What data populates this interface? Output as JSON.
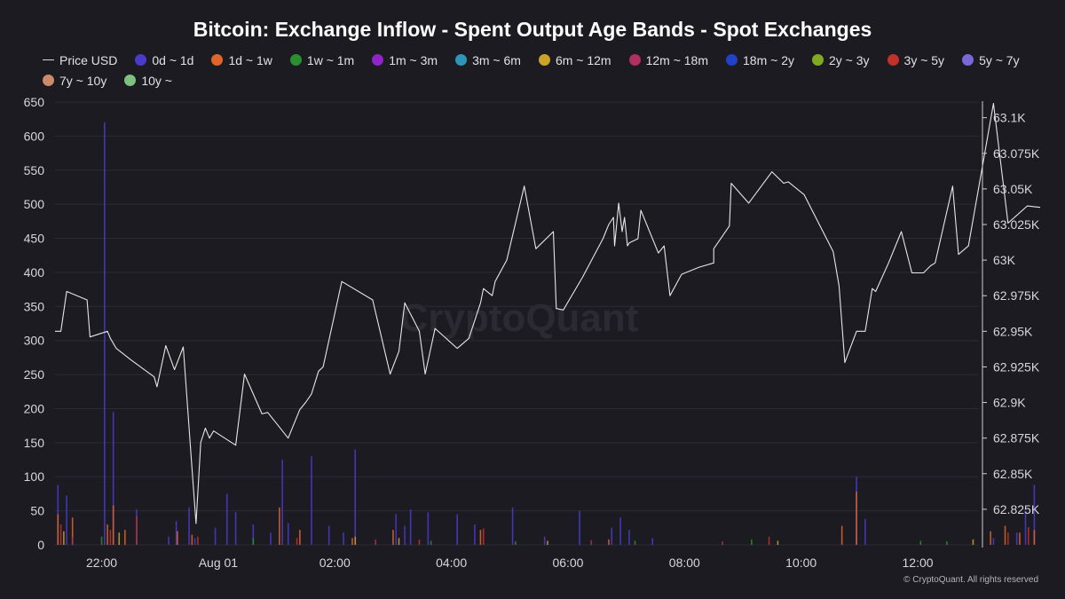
{
  "chart_data": {
    "type": "line",
    "title": "Bitcoin: Exchange Inflow - Spent Output Age Bands - Spot Exchanges",
    "watermark": "CryptoQuant",
    "copyright": "© CryptoQuant. All rights reserved",
    "x_ticks": [
      "22:00",
      "Aug 01",
      "02:00",
      "04:00",
      "06:00",
      "08:00",
      "10:00",
      "12:00"
    ],
    "left_axis": {
      "ticks": [
        "650",
        "600",
        "550",
        "500",
        "450",
        "400",
        "350",
        "300",
        "250",
        "200",
        "150",
        "100",
        "50",
        "0"
      ],
      "ylim": [
        0,
        650
      ]
    },
    "right_axis": {
      "ticks": [
        "63.1K",
        "63.075K",
        "63.05K",
        "63.025K",
        "63K",
        "62.975K",
        "62.95K",
        "62.925K",
        "62.9K",
        "62.875K",
        "62.85K",
        "62.825K"
      ],
      "ylim": [
        62800,
        63111
      ]
    },
    "grid": true,
    "legend_position": "top-left",
    "legend": [
      {
        "label": "Price USD",
        "color": "#d8d8d8",
        "kind": "line"
      },
      {
        "label": "0d ~ 1d",
        "color": "#4b3bcc",
        "kind": "dot"
      },
      {
        "label": "1d ~ 1w",
        "color": "#e0652a",
        "kind": "dot"
      },
      {
        "label": "1w ~ 1m",
        "color": "#2a8f2f",
        "kind": "dot"
      },
      {
        "label": "1m ~ 3m",
        "color": "#8f24c7",
        "kind": "dot"
      },
      {
        "label": "3m ~ 6m",
        "color": "#2e95b8",
        "kind": "dot"
      },
      {
        "label": "6m ~ 12m",
        "color": "#c9a227",
        "kind": "dot"
      },
      {
        "label": "12m ~ 18m",
        "color": "#b03060",
        "kind": "dot"
      },
      {
        "label": "18m ~ 2y",
        "color": "#2340c9",
        "kind": "dot"
      },
      {
        "label": "2y ~ 3y",
        "color": "#7faa22",
        "kind": "dot"
      },
      {
        "label": "3y ~ 5y",
        "color": "#c2302a",
        "kind": "dot"
      },
      {
        "label": "5y ~ 7y",
        "color": "#7b68d8",
        "kind": "dot"
      },
      {
        "label": "7y ~ 10y",
        "color": "#c98b6a",
        "kind": "dot"
      },
      {
        "label": "10y ~",
        "color": "#7fbf7f",
        "kind": "dot"
      }
    ],
    "x_range": [
      21.2,
      13.05
    ],
    "price": {
      "name": "Price USD",
      "points": [
        [
          21.2,
          62950
        ],
        [
          21.3,
          62950
        ],
        [
          21.4,
          62978
        ],
        [
          21.75,
          62972
        ],
        [
          21.8,
          62946
        ],
        [
          22.1,
          62950
        ],
        [
          22.15,
          62945
        ],
        [
          22.25,
          62938
        ],
        [
          22.5,
          62930
        ],
        [
          22.9,
          62918
        ],
        [
          22.95,
          62911
        ],
        [
          23.1,
          62940
        ],
        [
          23.25,
          62923
        ],
        [
          23.4,
          62939
        ],
        [
          23.55,
          62854
        ],
        [
          23.62,
          62815
        ],
        [
          23.7,
          62872
        ],
        [
          23.78,
          62882
        ],
        [
          23.85,
          62875
        ],
        [
          23.92,
          62880
        ],
        [
          24.3,
          62870
        ],
        [
          24.45,
          62920
        ],
        [
          24.75,
          62892
        ],
        [
          24.85,
          62893
        ],
        [
          25.2,
          62875
        ],
        [
          25.4,
          62895
        ],
        [
          25.5,
          62900
        ],
        [
          25.6,
          62906
        ],
        [
          25.72,
          62922
        ],
        [
          25.8,
          62925
        ],
        [
          26.12,
          62985
        ],
        [
          26.65,
          62972
        ],
        [
          26.95,
          62920
        ],
        [
          27.1,
          62936
        ],
        [
          27.2,
          62970
        ],
        [
          27.45,
          62950
        ],
        [
          27.55,
          62920
        ],
        [
          27.72,
          62952
        ],
        [
          28.1,
          62938
        ],
        [
          28.3,
          62945
        ],
        [
          28.5,
          62970
        ],
        [
          28.55,
          62980
        ],
        [
          28.7,
          62975
        ],
        [
          28.75,
          62985
        ],
        [
          28.95,
          63000
        ],
        [
          29.25,
          63052
        ],
        [
          29.45,
          63008
        ],
        [
          29.75,
          63020
        ],
        [
          29.8,
          62966
        ],
        [
          29.92,
          62965
        ],
        [
          30.25,
          62988
        ],
        [
          30.6,
          63015
        ],
        [
          30.7,
          63025
        ],
        [
          30.78,
          63030
        ],
        [
          30.8,
          63010
        ],
        [
          30.87,
          63040
        ],
        [
          30.93,
          63020
        ],
        [
          30.97,
          63030
        ],
        [
          31.02,
          63010
        ],
        [
          31.05,
          63012
        ],
        [
          31.2,
          63015
        ],
        [
          31.25,
          63035
        ],
        [
          31.55,
          63005
        ],
        [
          31.65,
          63010
        ],
        [
          31.75,
          62975
        ],
        [
          31.95,
          62990
        ],
        [
          32.25,
          62995
        ],
        [
          32.5,
          62998
        ],
        [
          32.5,
          63008
        ],
        [
          32.77,
          63024
        ],
        [
          32.8,
          63054
        ],
        [
          33.1,
          63040
        ],
        [
          33.5,
          63062
        ],
        [
          33.7,
          63054
        ],
        [
          33.78,
          63055
        ],
        [
          34.05,
          63046
        ],
        [
          34.55,
          63006
        ],
        [
          34.65,
          62982
        ],
        [
          34.75,
          62928
        ],
        [
          34.95,
          62950
        ],
        [
          35.1,
          62950
        ],
        [
          35.22,
          62980
        ],
        [
          35.28,
          62978
        ],
        [
          35.5,
          62998
        ],
        [
          35.72,
          63020
        ],
        [
          35.9,
          62991
        ],
        [
          36.1,
          62991
        ],
        [
          36.22,
          62996
        ],
        [
          36.3,
          62998
        ],
        [
          36.6,
          63052
        ],
        [
          36.7,
          63004
        ],
        [
          36.87,
          63010
        ],
        [
          37.3,
          63110
        ],
        [
          37.55,
          63026
        ],
        [
          37.88,
          63038
        ],
        [
          38.1,
          63037
        ]
      ]
    },
    "inflow_series": [
      {
        "name": "0d ~ 1d",
        "color": "#4b3bcc",
        "points": [
          [
            21.25,
            88
          ],
          [
            21.4,
            72
          ],
          [
            22.05,
            620
          ],
          [
            22.2,
            195
          ],
          [
            22.6,
            52
          ],
          [
            23.15,
            12
          ],
          [
            23.28,
            35
          ],
          [
            23.5,
            55
          ],
          [
            23.6,
            10
          ],
          [
            23.95,
            25
          ],
          [
            24.15,
            75
          ],
          [
            24.3,
            48
          ],
          [
            24.6,
            30
          ],
          [
            24.9,
            18
          ],
          [
            25.1,
            125
          ],
          [
            25.2,
            32
          ],
          [
            25.6,
            130
          ],
          [
            25.9,
            28
          ],
          [
            26.15,
            18
          ],
          [
            26.35,
            140
          ],
          [
            27.05,
            45
          ],
          [
            27.2,
            28
          ],
          [
            27.3,
            52
          ],
          [
            27.6,
            48
          ],
          [
            28.1,
            45
          ],
          [
            28.4,
            30
          ],
          [
            29.05,
            55
          ],
          [
            29.6,
            12
          ],
          [
            30.2,
            50
          ],
          [
            30.75,
            25
          ],
          [
            30.9,
            40
          ],
          [
            31.05,
            22
          ],
          [
            31.45,
            10
          ],
          [
            34.95,
            100
          ],
          [
            35.1,
            38
          ],
          [
            37.3,
            10
          ],
          [
            37.7,
            18
          ],
          [
            37.85,
            50
          ],
          [
            38.0,
            88
          ]
        ]
      },
      {
        "name": "1d ~ 1w",
        "color": "#e0652a",
        "points": [
          [
            21.25,
            45
          ],
          [
            21.5,
            40
          ],
          [
            22.1,
            30
          ],
          [
            22.2,
            58
          ],
          [
            22.4,
            22
          ],
          [
            23.3,
            20
          ],
          [
            23.55,
            15
          ],
          [
            25.05,
            55
          ],
          [
            25.4,
            22
          ],
          [
            26.3,
            10
          ],
          [
            27.0,
            22
          ],
          [
            28.5,
            22
          ],
          [
            30.7,
            8
          ],
          [
            34.7,
            28
          ],
          [
            34.95,
            78
          ],
          [
            37.25,
            20
          ],
          [
            37.5,
            28
          ],
          [
            37.75,
            18
          ],
          [
            38.0,
            22
          ]
        ]
      },
      {
        "name": "3y ~ 5y",
        "color": "#c2302a",
        "points": [
          [
            21.3,
            30
          ],
          [
            22.15,
            22
          ],
          [
            22.6,
            42
          ],
          [
            23.65,
            12
          ],
          [
            25.35,
            10
          ],
          [
            27.45,
            8
          ],
          [
            28.55,
            24
          ],
          [
            33.45,
            12
          ],
          [
            37.55,
            18
          ],
          [
            37.9,
            26
          ]
        ]
      },
      {
        "name": "1w ~ 1m",
        "color": "#2a8f2f",
        "points": [
          [
            22.0,
            12
          ],
          [
            24.6,
            10
          ],
          [
            27.65,
            6
          ],
          [
            29.1,
            5
          ],
          [
            31.15,
            6
          ],
          [
            33.15,
            8
          ],
          [
            36.05,
            6
          ],
          [
            36.5,
            5
          ]
        ]
      },
      {
        "name": "6m ~ 12m",
        "color": "#c9a227",
        "points": [
          [
            21.35,
            20
          ],
          [
            22.3,
            18
          ],
          [
            26.35,
            12
          ],
          [
            27.1,
            10
          ],
          [
            29.65,
            6
          ],
          [
            33.6,
            6
          ],
          [
            36.95,
            8
          ]
        ]
      },
      {
        "name": "12m ~ 18m",
        "color": "#b03060",
        "points": [
          [
            21.5,
            12
          ],
          [
            26.7,
            8
          ],
          [
            30.4,
            7
          ],
          [
            32.65,
            5
          ]
        ]
      }
    ]
  }
}
